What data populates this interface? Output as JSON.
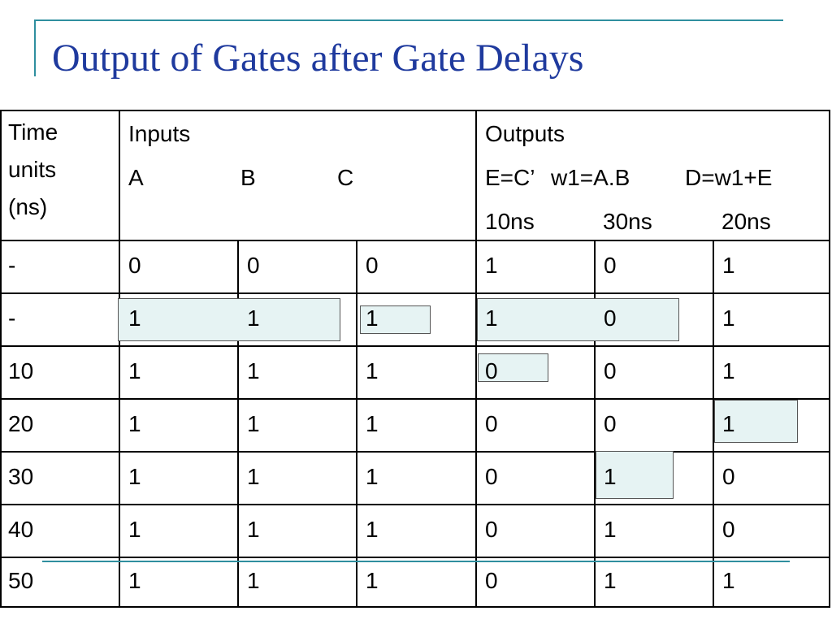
{
  "title": "Output of Gates after Gate Delays",
  "header": {
    "time": [
      "Time",
      "units",
      "(ns)"
    ],
    "inputs_label": "Inputs",
    "input_names": [
      "A",
      "B",
      "C"
    ],
    "outputs_label": "Outputs",
    "output_names": [
      "E=C’",
      "w1=A.B",
      "D=w1+E"
    ],
    "delays": [
      "10ns",
      "30ns",
      "20ns"
    ]
  },
  "rows": [
    [
      "-",
      "0",
      "0",
      "0",
      "1",
      "0",
      "1"
    ],
    [
      "-",
      "1",
      "1",
      "1",
      "1",
      "0",
      "1"
    ],
    [
      "10",
      "1",
      "1",
      "1",
      "0",
      "0",
      "1"
    ],
    [
      "20",
      "1",
      "1",
      "1",
      "0",
      "0",
      "1"
    ],
    [
      "30",
      "1",
      "1",
      "1",
      "0",
      "1",
      "0"
    ],
    [
      "40",
      "1",
      "1",
      "1",
      "0",
      "1",
      "0"
    ],
    [
      "50",
      "1",
      "1",
      "1",
      "0",
      "1",
      "1"
    ]
  ],
  "colors": {
    "title": "#1f3a9e",
    "accent_line": "#2f8f9f",
    "highlight_fill": "#e6f3f3"
  }
}
